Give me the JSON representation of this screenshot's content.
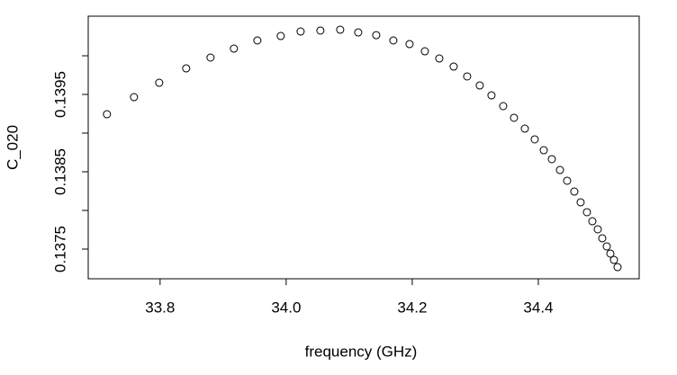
{
  "chart_data": {
    "type": "scatter",
    "xlabel": "frequency (GHz)",
    "ylabel": "C_020",
    "x": [
      33.7157,
      33.7586,
      33.7986,
      33.8414,
      33.88,
      33.9171,
      33.9543,
      33.9914,
      34.0229,
      34.0543,
      34.0857,
      34.1143,
      34.1429,
      34.17,
      34.1957,
      34.22,
      34.2429,
      34.2657,
      34.2871,
      34.3071,
      34.3257,
      34.3443,
      34.3614,
      34.3786,
      34.3943,
      34.4086,
      34.4214,
      34.4343,
      34.4457,
      34.4571,
      34.4671,
      34.4771,
      34.4857,
      34.4943,
      34.5014,
      34.5086,
      34.5143,
      34.52,
      34.5257
    ],
    "values": [
      0.139244,
      0.139465,
      0.139651,
      0.139837,
      0.139977,
      0.140093,
      0.140198,
      0.140256,
      0.140314,
      0.140326,
      0.140337,
      0.140302,
      0.140267,
      0.140198,
      0.140151,
      0.140058,
      0.139965,
      0.13986,
      0.139733,
      0.139616,
      0.139488,
      0.139349,
      0.139198,
      0.139058,
      0.138919,
      0.138779,
      0.138663,
      0.138523,
      0.138384,
      0.138244,
      0.138105,
      0.137977,
      0.13786,
      0.137756,
      0.13764,
      0.137535,
      0.137442,
      0.13736,
      0.137267
    ],
    "color": "#000000",
    "xlim": [
      33.686,
      34.56
    ],
    "ylim": [
      0.137116,
      0.140512
    ],
    "xticks": [
      33.8,
      {
        "value": 34,
        "label": "34.0"
      },
      34.2,
      34.4
    ],
    "yticks": [
      0.1375,
      0.1385,
      0.1395
    ],
    "yticks_unlabeled": [
      0.138,
      0.139,
      0.14
    ]
  }
}
